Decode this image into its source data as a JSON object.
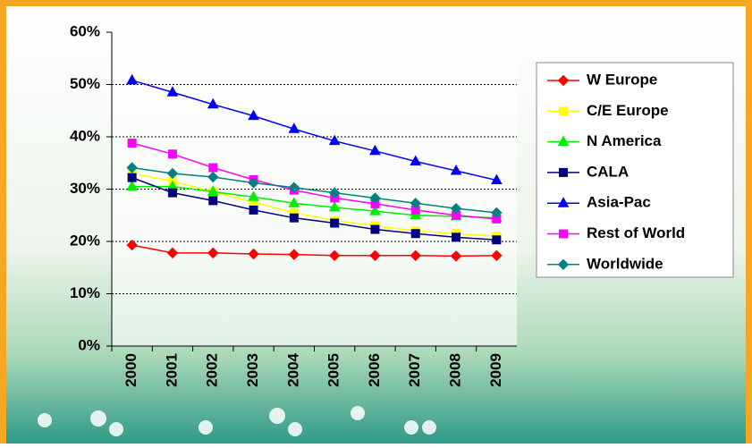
{
  "chart_data": {
    "type": "line",
    "categories": [
      "2000",
      "2001",
      "2002",
      "2003",
      "2004",
      "2005",
      "2006",
      "2007",
      "2008",
      "2009"
    ],
    "ylim": [
      0,
      60
    ],
    "yticks": [
      {
        "value": 0,
        "label": "0%"
      },
      {
        "value": 10,
        "label": "10%"
      },
      {
        "value": 20,
        "label": "20%"
      },
      {
        "value": 30,
        "label": "30%"
      },
      {
        "value": 40,
        "label": "40%"
      },
      {
        "value": 50,
        "label": "50%"
      },
      {
        "value": 60,
        "label": "60%"
      }
    ],
    "grid": true,
    "legend": "right",
    "series": [
      {
        "name": "W Europe",
        "color": "#ff0000",
        "marker": "diamond",
        "values": [
          19.3,
          17.8,
          17.8,
          17.6,
          17.5,
          17.3,
          17.3,
          17.3,
          17.2,
          17.3
        ]
      },
      {
        "name": "C/E Europe",
        "color": "#ffff00",
        "marker": "square",
        "values": [
          33,
          31.5,
          29.5,
          27.5,
          25.5,
          24,
          23,
          22,
          21.5,
          21
        ]
      },
      {
        "name": "N America",
        "color": "#00ee00",
        "marker": "triangle",
        "values": [
          30.5,
          30.5,
          29.5,
          28.5,
          27.3,
          26.5,
          25.8,
          25,
          24.8,
          24.5
        ]
      },
      {
        "name": "CALA",
        "color": "#000080",
        "marker": "square",
        "values": [
          32.2,
          29.3,
          27.8,
          26,
          24.5,
          23.5,
          22.3,
          21.5,
          20.8,
          20.3
        ]
      },
      {
        "name": "Asia-Pac",
        "color": "#0000ff",
        "marker": "triangle",
        "values": [
          50.8,
          48.5,
          46.2,
          44,
          41.5,
          39.2,
          37.3,
          35.3,
          33.5,
          31.7
        ]
      },
      {
        "name": "Rest of World",
        "color": "#ff00ff",
        "marker": "square",
        "values": [
          38.8,
          36.7,
          34.1,
          31.8,
          29.8,
          28.3,
          27.2,
          26,
          25,
          24.3
        ]
      },
      {
        "name": "Worldwide",
        "color": "#008080",
        "marker": "diamond",
        "values": [
          34.1,
          33,
          32.3,
          31.2,
          30.3,
          29.3,
          28.3,
          27.3,
          26.3,
          25.5
        ]
      }
    ]
  }
}
